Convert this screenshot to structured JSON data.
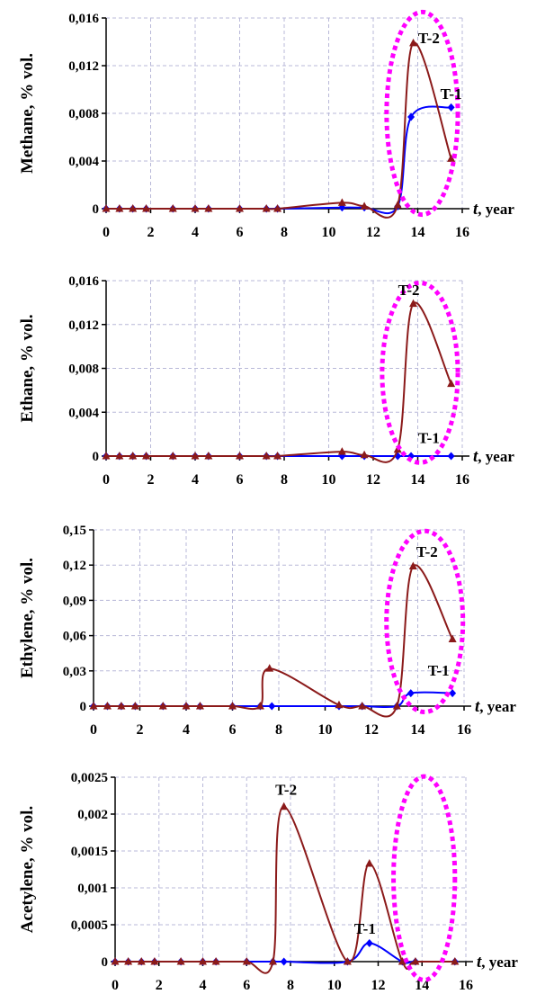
{
  "chart_data": [
    {
      "type": "line",
      "ylabel": "Methane, % vol.",
      "xlabel_italic": "t",
      "xlabel_rest": ", year",
      "xlim": [
        0,
        16
      ],
      "ylim": [
        0,
        0.016
      ],
      "xticks": [
        0,
        2,
        4,
        6,
        8,
        10,
        12,
        14,
        16
      ],
      "yticks": [
        0,
        0.004,
        0.008,
        0.012,
        0.016
      ],
      "ytick_labels": [
        "0",
        "0,004",
        "0,008",
        "0,012",
        "0,016"
      ],
      "grid": true,
      "series": [
        {
          "name": "T-1",
          "color": "#0000ff",
          "marker": "diamond",
          "points": [
            [
              0,
              0
            ],
            [
              0.6,
              0
            ],
            [
              1.2,
              0
            ],
            [
              1.8,
              0
            ],
            [
              3,
              0
            ],
            [
              4,
              0
            ],
            [
              4.6,
              0
            ],
            [
              6,
              0
            ],
            [
              7.2,
              0
            ],
            [
              7.7,
              0
            ],
            [
              10.6,
              0.0001
            ],
            [
              11.6,
              0.0001
            ],
            [
              13.1,
              0.0002
            ],
            [
              13.7,
              0.0077
            ],
            [
              15.5,
              0.0085
            ]
          ]
        },
        {
          "name": "T-2",
          "color": "#8b1a1a",
          "marker": "triangle",
          "points": [
            [
              0,
              0
            ],
            [
              0.6,
              0
            ],
            [
              1.2,
              0
            ],
            [
              1.8,
              0
            ],
            [
              3,
              0
            ],
            [
              4,
              0
            ],
            [
              4.6,
              0
            ],
            [
              6,
              0
            ],
            [
              7.2,
              0
            ],
            [
              7.7,
              0
            ],
            [
              10.6,
              0.0005
            ],
            [
              11.6,
              0.0002
            ],
            [
              13.1,
              0.0003
            ],
            [
              13.8,
              0.0139
            ],
            [
              15.5,
              0.0042
            ]
          ]
        }
      ],
      "annotations": [
        {
          "text": "T-2",
          "x": 14.5,
          "y": 0.0139
        },
        {
          "text": "T-1",
          "x": 15.5,
          "y": 0.0092
        }
      ],
      "highlight": {
        "shape": "dotted-ellipse",
        "color": "#ff00ff",
        "cx": 14.2,
        "cy": 0.008,
        "rx": 1.6,
        "ry": 0.0085
      }
    },
    {
      "type": "line",
      "ylabel": "Ethane, % vol.",
      "xlabel_italic": "t",
      "xlabel_rest": ", year",
      "xlim": [
        0,
        16
      ],
      "ylim": [
        0,
        0.016
      ],
      "xticks": [
        0,
        2,
        4,
        6,
        8,
        10,
        12,
        14,
        16
      ],
      "yticks": [
        0,
        0.004,
        0.008,
        0.012,
        0.016
      ],
      "ytick_labels": [
        "0",
        "0,004",
        "0,008",
        "0,012",
        "0,016"
      ],
      "grid": true,
      "series": [
        {
          "name": "T-1",
          "color": "#0000ff",
          "marker": "diamond",
          "points": [
            [
              0,
              0
            ],
            [
              0.6,
              0
            ],
            [
              1.2,
              0
            ],
            [
              1.8,
              0
            ],
            [
              3,
              0
            ],
            [
              4,
              0
            ],
            [
              4.6,
              0
            ],
            [
              6,
              0
            ],
            [
              7.2,
              0
            ],
            [
              7.7,
              0
            ],
            [
              10.6,
              0
            ],
            [
              11.6,
              0
            ],
            [
              13.1,
              0
            ],
            [
              13.7,
              0
            ],
            [
              15.5,
              0
            ]
          ]
        },
        {
          "name": "T-2",
          "color": "#8b1a1a",
          "marker": "triangle",
          "points": [
            [
              0,
              0
            ],
            [
              0.6,
              0
            ],
            [
              1.2,
              0
            ],
            [
              1.8,
              0
            ],
            [
              3,
              0
            ],
            [
              4,
              0
            ],
            [
              4.6,
              0
            ],
            [
              6,
              0
            ],
            [
              7.2,
              0
            ],
            [
              7.7,
              0
            ],
            [
              10.6,
              0.0004
            ],
            [
              11.6,
              0.0001
            ],
            [
              13.1,
              0.0006
            ],
            [
              13.8,
              0.0139
            ],
            [
              15.5,
              0.0066
            ]
          ]
        }
      ],
      "annotations": [
        {
          "text": "T-2",
          "x": 13.6,
          "y": 0.0147
        },
        {
          "text": "T-1",
          "x": 14.5,
          "y": 0.0012
        }
      ],
      "highlight": {
        "shape": "dotted-ellipse",
        "color": "#ff00ff",
        "cx": 14.1,
        "cy": 0.0076,
        "rx": 1.7,
        "ry": 0.0082
      }
    },
    {
      "type": "line",
      "ylabel": "Ethylene, % vol.",
      "xlabel_italic": "t",
      "xlabel_rest": ", year",
      "xlim": [
        0,
        16
      ],
      "ylim": [
        0,
        0.15
      ],
      "xticks": [
        0,
        2,
        4,
        6,
        8,
        10,
        12,
        14,
        16
      ],
      "yticks": [
        0,
        0.03,
        0.06,
        0.09,
        0.12,
        0.15
      ],
      "ytick_labels": [
        "0",
        "0,03",
        "0,06",
        "0,09",
        "0,12",
        "0,15"
      ],
      "grid": true,
      "series": [
        {
          "name": "T-1",
          "color": "#0000ff",
          "marker": "diamond",
          "points": [
            [
              0,
              0
            ],
            [
              0.6,
              0
            ],
            [
              1.2,
              0
            ],
            [
              1.8,
              0
            ],
            [
              3,
              0
            ],
            [
              4,
              0
            ],
            [
              4.6,
              0
            ],
            [
              6,
              0
            ],
            [
              7.2,
              0
            ],
            [
              7.7,
              0
            ],
            [
              10.6,
              0
            ],
            [
              11.6,
              0
            ],
            [
              13.1,
              0
            ],
            [
              13.7,
              0.011
            ],
            [
              15.5,
              0.011
            ]
          ]
        },
        {
          "name": "T-2",
          "color": "#8b1a1a",
          "marker": "triangle",
          "points": [
            [
              0,
              0
            ],
            [
              0.6,
              0
            ],
            [
              1.2,
              0
            ],
            [
              1.8,
              0
            ],
            [
              3,
              0
            ],
            [
              4,
              0
            ],
            [
              4.6,
              0
            ],
            [
              6,
              0
            ],
            [
              7.2,
              0
            ],
            [
              7.6,
              0.032
            ],
            [
              10.6,
              0.001
            ],
            [
              11.6,
              0
            ],
            [
              13.1,
              0
            ],
            [
              13.8,
              0.119
            ],
            [
              15.5,
              0.057
            ]
          ]
        }
      ],
      "annotations": [
        {
          "text": "T-2",
          "x": 14.4,
          "y": 0.127
        },
        {
          "text": "T-1",
          "x": 14.9,
          "y": 0.026
        }
      ],
      "highlight": {
        "shape": "dotted-ellipse",
        "color": "#ff00ff",
        "cx": 14.3,
        "cy": 0.072,
        "rx": 1.65,
        "ry": 0.077
      }
    },
    {
      "type": "line",
      "ylabel": "Acetylene, % vol.",
      "xlabel_italic": "t",
      "xlabel_rest": ", year",
      "xlim": [
        0,
        16
      ],
      "ylim": [
        0,
        0.0025
      ],
      "xticks": [
        0,
        2,
        4,
        6,
        8,
        10,
        12,
        14,
        16
      ],
      "yticks": [
        0,
        0.0005,
        0.001,
        0.0015,
        0.002,
        0.0025
      ],
      "ytick_labels": [
        "0",
        "0,0005",
        "0,001",
        "0,0015",
        "0,002",
        "0,0025"
      ],
      "grid": true,
      "series": [
        {
          "name": "T-1",
          "color": "#0000ff",
          "marker": "diamond",
          "points": [
            [
              0,
              0
            ],
            [
              0.6,
              0
            ],
            [
              1.2,
              0
            ],
            [
              1.8,
              0
            ],
            [
              3,
              0
            ],
            [
              4,
              0
            ],
            [
              4.6,
              0
            ],
            [
              6,
              0
            ],
            [
              7.2,
              0
            ],
            [
              7.7,
              0
            ],
            [
              10.6,
              0
            ],
            [
              11.6,
              0.00025
            ],
            [
              13.1,
              0
            ],
            [
              13.7,
              0
            ],
            [
              15.5,
              0
            ]
          ]
        },
        {
          "name": "T-2",
          "color": "#8b1a1a",
          "marker": "triangle",
          "points": [
            [
              0,
              0
            ],
            [
              0.6,
              0
            ],
            [
              1.2,
              0
            ],
            [
              1.8,
              0
            ],
            [
              3,
              0
            ],
            [
              4,
              0
            ],
            [
              4.6,
              0
            ],
            [
              6,
              0
            ],
            [
              7.2,
              0
            ],
            [
              7.7,
              0.0021
            ],
            [
              10.6,
              0
            ],
            [
              11.6,
              0.00133
            ],
            [
              13.1,
              0
            ],
            [
              13.7,
              0
            ],
            [
              15.5,
              0
            ]
          ]
        }
      ],
      "annotations": [
        {
          "text": "T-2",
          "x": 7.8,
          "y": 0.00226
        },
        {
          "text": "T-1",
          "x": 11.4,
          "y": 0.00038
        }
      ],
      "highlight": {
        "shape": "dotted-ellipse",
        "color": "#ff00ff",
        "cx": 14.1,
        "cy": 0.00113,
        "rx": 1.4,
        "ry": 0.00138
      }
    }
  ]
}
